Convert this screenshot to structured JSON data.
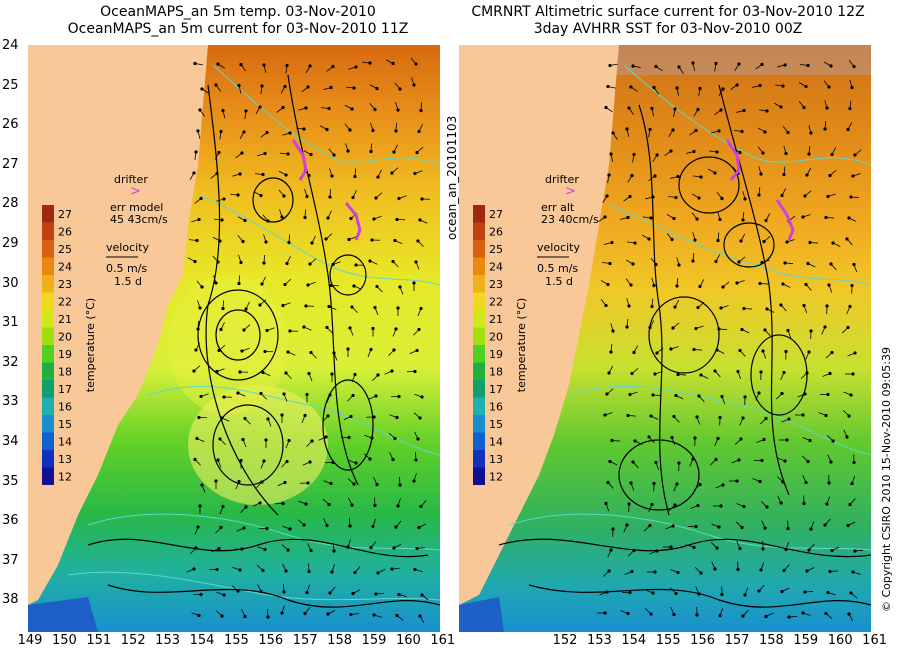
{
  "left_panel": {
    "title_line1": "OceanMAPS_an 5m temp. 03-Nov-2010",
    "title_line2": "OceanMAPS_an 5m current for 03-Nov-2010 11Z",
    "drifter_label": "drifter",
    "drifter_marker": ">",
    "err_label": "err model",
    "err_value": "45 43cm/s",
    "velocity_label": "velocity",
    "velocity_speed": "0.5 m/s",
    "velocity_time": "1.5 d",
    "colorbar_label": "temperature (°C)",
    "side_text": "ocean_an_20101103"
  },
  "right_panel": {
    "title_line1": "CMRNRT Altimetric surface current for 03-Nov-2010 12Z",
    "title_line2": "3day AVHRR SST for 03-Nov-2010 00Z",
    "drifter_label": "drifter",
    "drifter_marker": ">",
    "err_label": "err alt",
    "err_value": "23 40cm/s",
    "velocity_label": "velocity",
    "velocity_speed": "0.5 m/s",
    "velocity_time": "1.5 d",
    "colorbar_label": "temperature (°C)",
    "side_text": "© Copyright CSIRO 2010   15-Nov-2010 09:05:39"
  },
  "colorbar_ticks": [
    "27",
    "26",
    "25",
    "24",
    "23",
    "22",
    "21",
    "20",
    "19",
    "18",
    "17",
    "16",
    "15",
    "14",
    "13",
    "12"
  ],
  "colorbar_colors": [
    "#a02810",
    "#c04010",
    "#d86010",
    "#e88a10",
    "#f0b018",
    "#f0d820",
    "#d0e818",
    "#a0e010",
    "#50d020",
    "#20b040",
    "#10a070",
    "#20b0b0",
    "#1890d0",
    "#1060d0",
    "#1030c0",
    "#101090"
  ],
  "y_axis_ticks": [
    "24",
    "25",
    "26",
    "27",
    "28",
    "29",
    "30",
    "31",
    "32",
    "33",
    "34",
    "35",
    "36",
    "37",
    "38"
  ],
  "left_x_ticks": [
    "149",
    "150",
    "151",
    "152",
    "153",
    "154",
    "155",
    "156",
    "157",
    "158",
    "159",
    "160",
    "161"
  ],
  "right_x_ticks": [
    "152",
    "153",
    "154",
    "155",
    "156",
    "157",
    "158",
    "159",
    "160",
    "161"
  ],
  "map": {
    "land_color": "#f8c898",
    "contour_color": "#60d8c8",
    "vector_color": "#000000",
    "drifter_color": "#d040e0"
  }
}
